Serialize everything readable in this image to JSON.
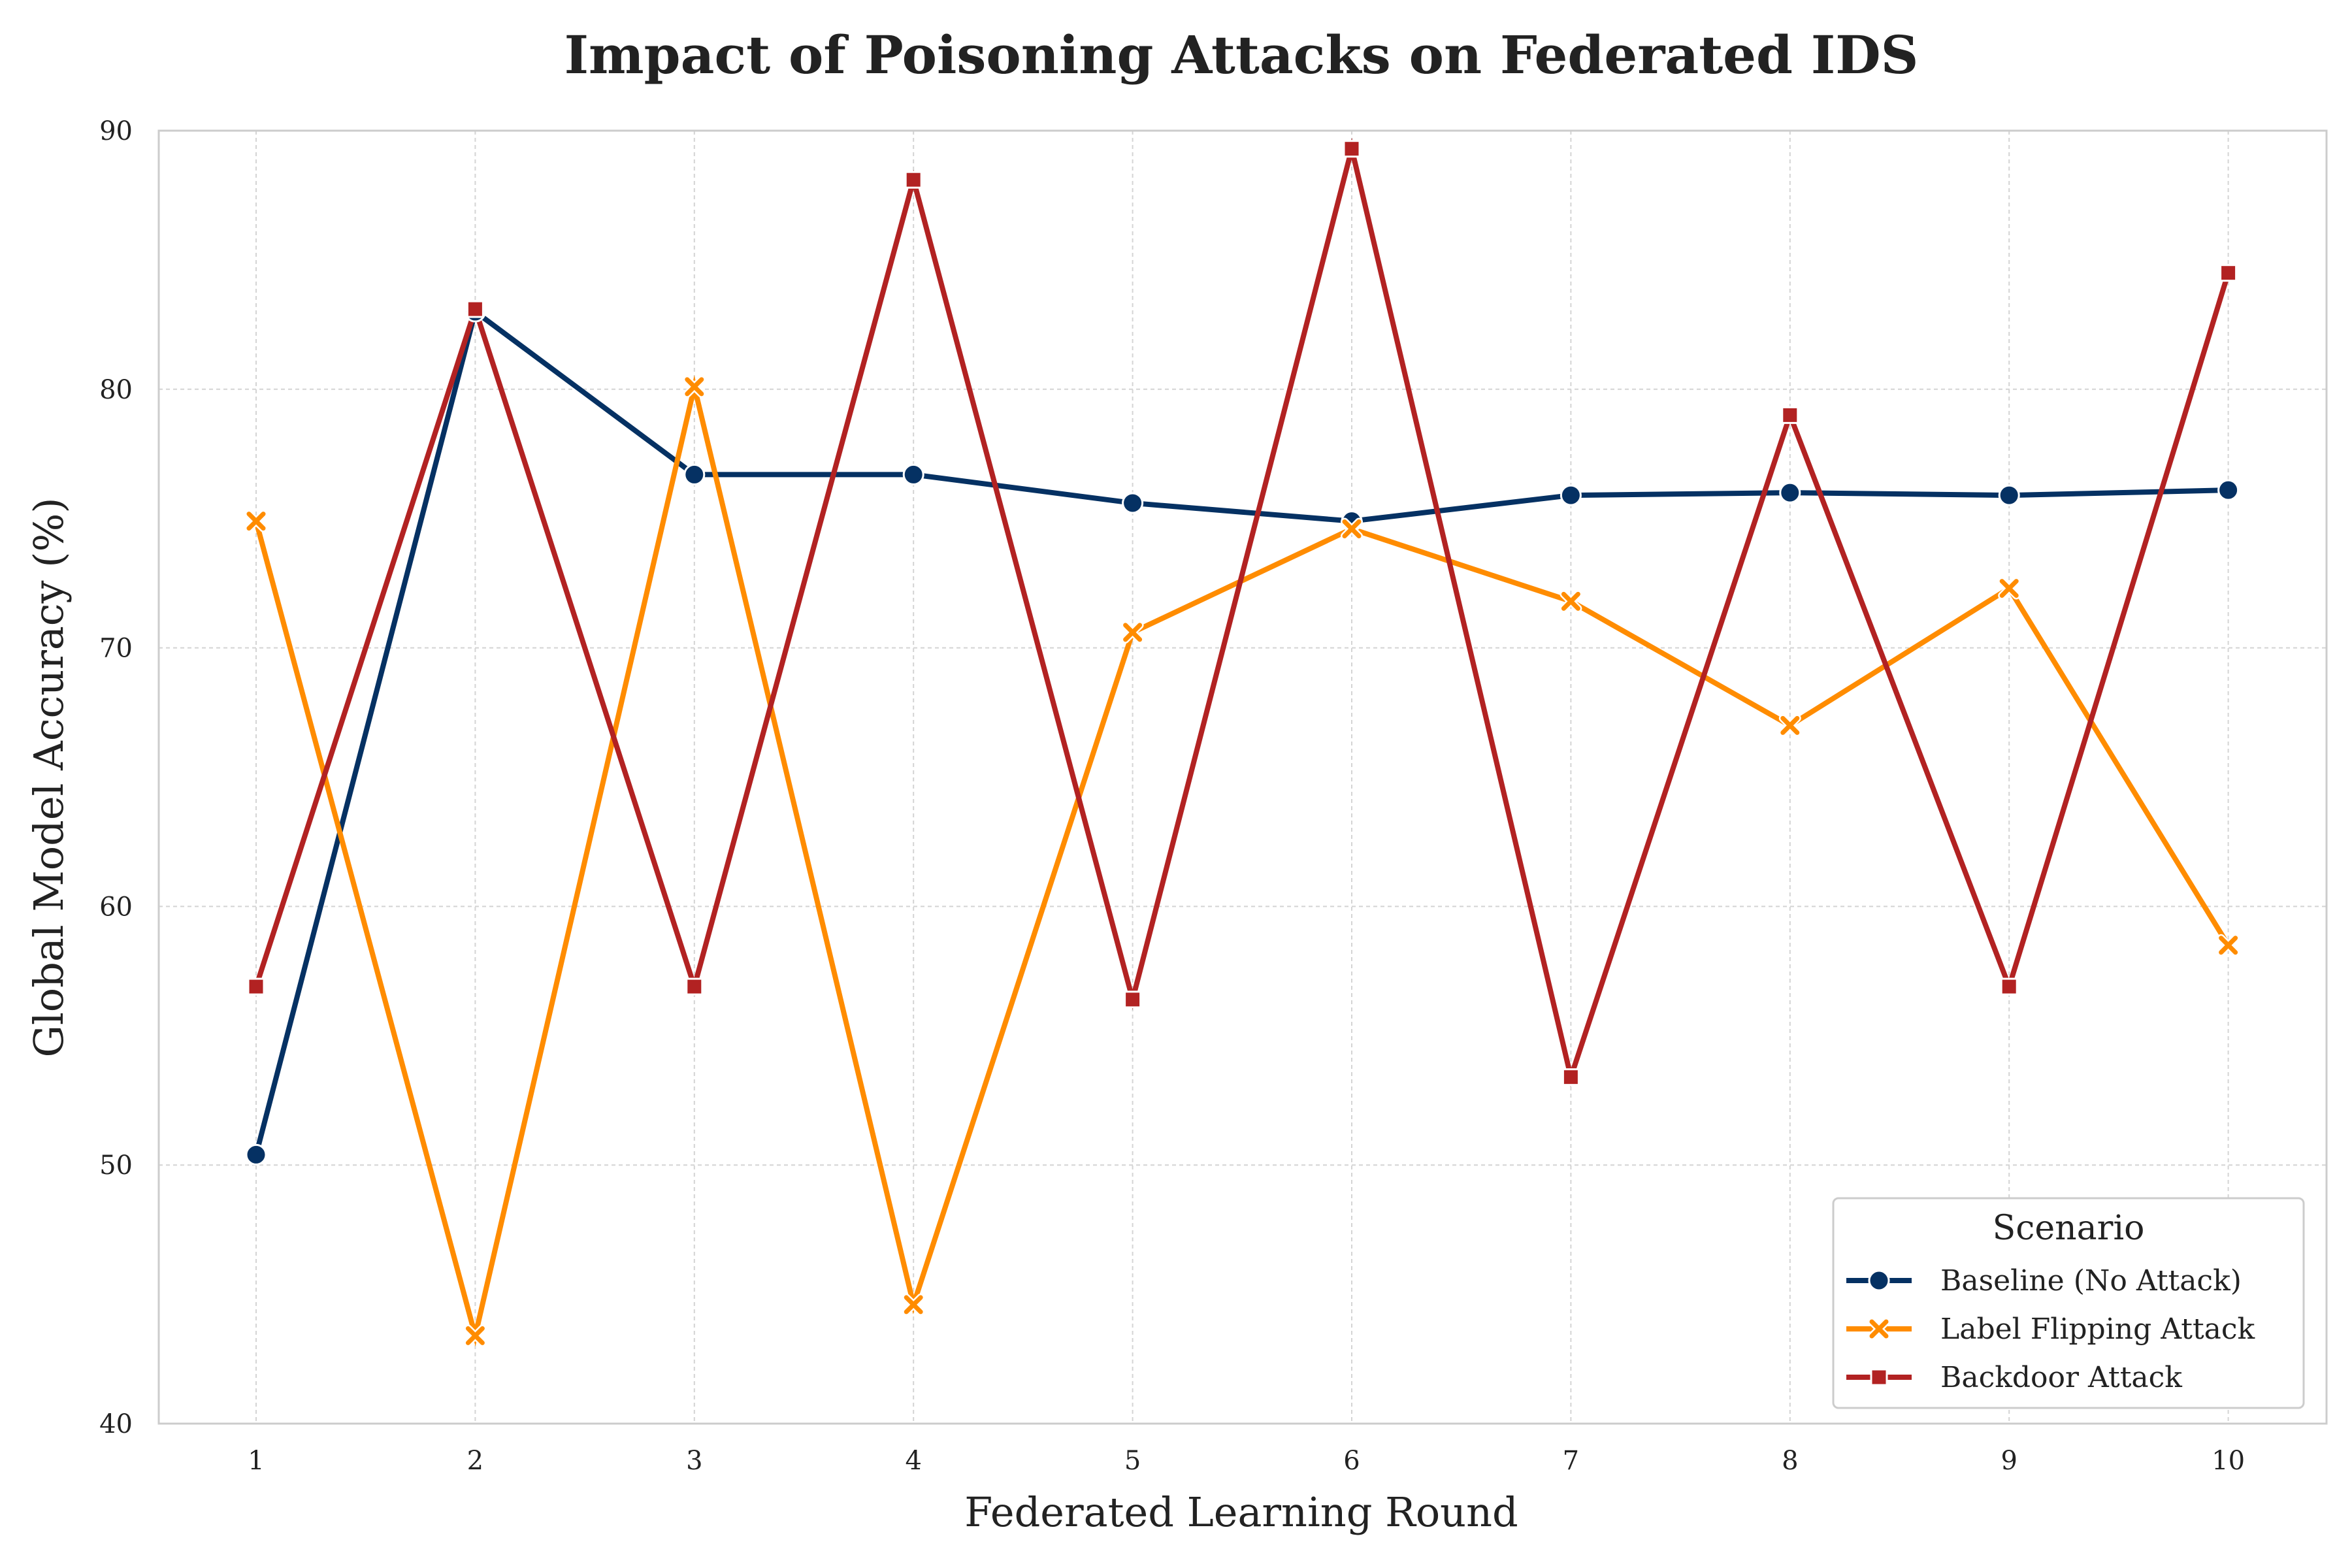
{
  "chart_data": {
    "type": "line",
    "title": "Impact of Poisoning Attacks on Federated IDS",
    "xlabel": "Federated Learning Round",
    "ylabel": "Global Model Accuracy (%)",
    "x": [
      1,
      2,
      3,
      4,
      5,
      6,
      7,
      8,
      9,
      10
    ],
    "xticks": [
      "1",
      "2",
      "3",
      "4",
      "5",
      "6",
      "7",
      "8",
      "9",
      "10"
    ],
    "ylim": [
      40,
      90
    ],
    "yticks": [
      40,
      50,
      60,
      70,
      80,
      90
    ],
    "grid": true,
    "legend": {
      "title": "Scenario",
      "placement": "lower-right"
    },
    "series": [
      {
        "name": "Baseline (No Attack)",
        "color": "#053163",
        "marker": "circle",
        "values": [
          50.4,
          83.0,
          76.7,
          76.7,
          75.6,
          74.9,
          75.9,
          76.0,
          75.9,
          76.1
        ]
      },
      {
        "name": "Label Flipping Attack",
        "color": "#ff8c00",
        "marker": "x",
        "values": [
          74.9,
          43.4,
          80.1,
          44.6,
          70.6,
          74.6,
          71.8,
          67.0,
          72.3,
          58.5
        ]
      },
      {
        "name": "Backdoor Attack",
        "color": "#b22222",
        "marker": "square",
        "values": [
          56.9,
          83.1,
          56.9,
          88.1,
          56.4,
          89.3,
          53.4,
          79.0,
          56.9,
          84.5
        ]
      }
    ]
  }
}
